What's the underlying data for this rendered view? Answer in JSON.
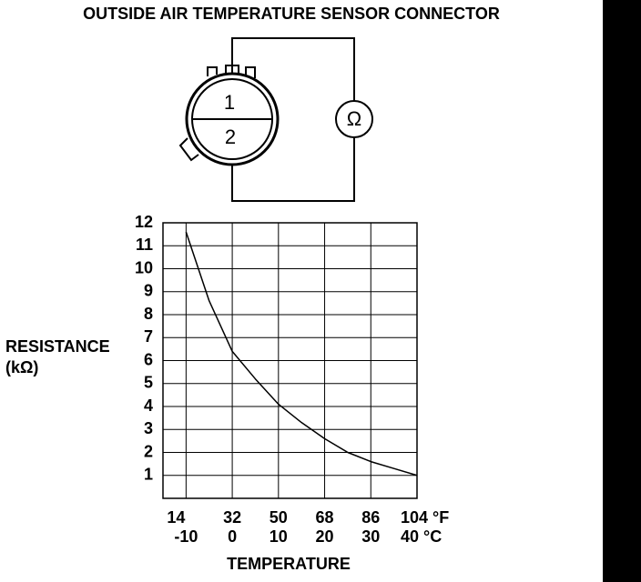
{
  "title": "OUTSIDE AIR TEMPERATURE SENSOR CONNECTOR",
  "connector": {
    "pin_top": "1",
    "pin_bottom": "2",
    "meter_symbol": "Ω"
  },
  "chart_data": {
    "type": "line",
    "y_label": "RESISTANCE",
    "y_unit": "(kΩ)",
    "x_label": "TEMPERATURE",
    "x": [
      -10,
      -5,
      0,
      5,
      10,
      15,
      20,
      25,
      30,
      35,
      40
    ],
    "series": [
      {
        "color": "#000000",
        "values": [
          11.6,
          8.6,
          6.4,
          5.2,
          4.1,
          3.3,
          2.6,
          2.0,
          1.6,
          1.3,
          1.0
        ]
      }
    ],
    "xlim": [
      -15,
      40
    ],
    "xticks": [
      {
        "value": -10,
        "label": "-10"
      },
      0,
      10,
      20,
      30,
      {
        "value": 40,
        "label": "40 °C"
      }
    ],
    "x2lim": [
      5,
      104
    ],
    "x2ticks": [
      14,
      32,
      50,
      68,
      86,
      {
        "value": 104,
        "label": "104 °F"
      }
    ],
    "ylim": [
      0,
      12
    ],
    "yticks": [
      1,
      2,
      3,
      4,
      5,
      6,
      7,
      8,
      9,
      10,
      11,
      12
    ],
    "grid": true
  }
}
